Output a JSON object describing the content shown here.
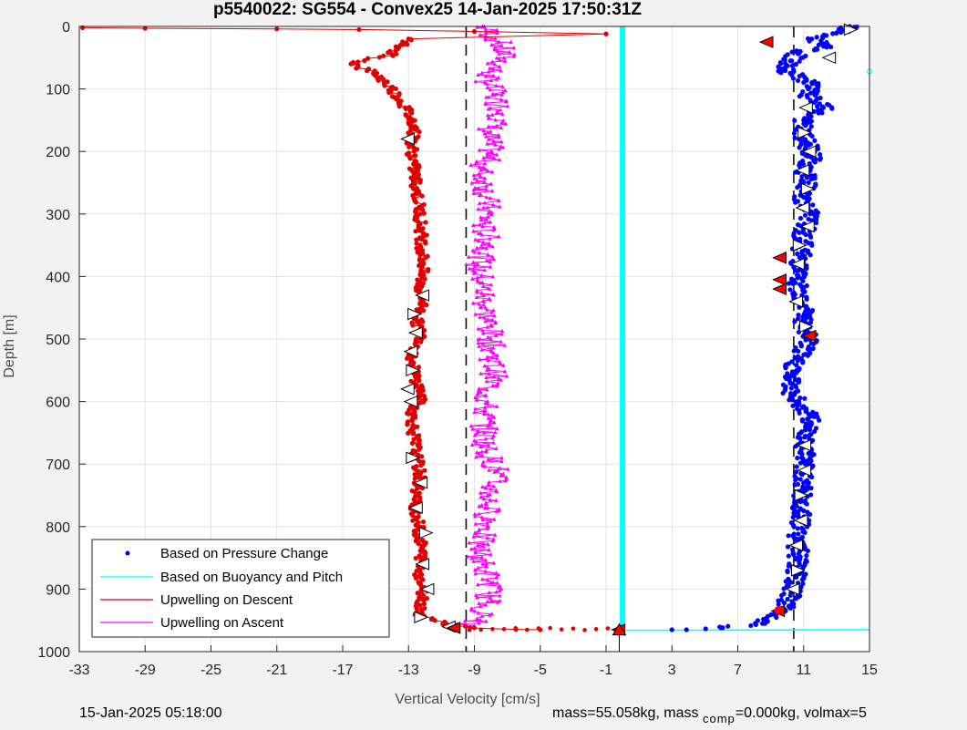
{
  "chart_data": {
    "type": "scatter",
    "title": "p5540022: SG554 - Convex25 14-Jan-2025 17:50:31Z",
    "xlabel": "Vertical Velocity [cm/s]",
    "ylabel": "Depth [m]",
    "xlim": [
      -33,
      15
    ],
    "ylim": [
      0,
      1000
    ],
    "y_reversed": true,
    "grid": true,
    "legend_position": "bottom-left",
    "x_ticks": [
      "-33",
      "-29",
      "-25",
      "-21",
      "-17",
      "-13",
      "-9",
      "-5",
      "-1",
      "3",
      "7",
      "11",
      "15"
    ],
    "y_ticks": [
      "0",
      "100",
      "200",
      "300",
      "400",
      "500",
      "600",
      "700",
      "800",
      "900",
      "1000"
    ],
    "reference_lines_x": [
      -9.5,
      10.4
    ],
    "series": [
      {
        "name": "Based on Pressure Change",
        "color": "#0000ff",
        "marker": "dot",
        "profile": [
          [
            0,
            13.8
          ],
          [
            10,
            13
          ],
          [
            20,
            11.5
          ],
          [
            30,
            12.5
          ],
          [
            40,
            10.8
          ],
          [
            55,
            10.2
          ],
          [
            70,
            9.8
          ],
          [
            90,
            11.5
          ],
          [
            110,
            11.2
          ],
          [
            130,
            12.2
          ],
          [
            150,
            11
          ],
          [
            170,
            10.8
          ],
          [
            190,
            11.3
          ],
          [
            210,
            11.5
          ],
          [
            230,
            11
          ],
          [
            250,
            11.3
          ],
          [
            270,
            10.8
          ],
          [
            300,
            11.4
          ],
          [
            330,
            11
          ],
          [
            360,
            10.9
          ],
          [
            390,
            10.7
          ],
          [
            410,
            10.5
          ],
          [
            430,
            10.9
          ],
          [
            460,
            11.2
          ],
          [
            480,
            10.8
          ],
          [
            500,
            11.4
          ],
          [
            530,
            10.6
          ],
          [
            560,
            10.2
          ],
          [
            590,
            10.3
          ],
          [
            620,
            11.3
          ],
          [
            640,
            11.4
          ],
          [
            670,
            11.1
          ],
          [
            700,
            11.1
          ],
          [
            730,
            11
          ],
          [
            760,
            10.8
          ],
          [
            790,
            10.8
          ],
          [
            820,
            10.6
          ],
          [
            850,
            10.7
          ],
          [
            880,
            10.5
          ],
          [
            910,
            10.2
          ],
          [
            935,
            9.8
          ],
          [
            955,
            8.5
          ],
          [
            962,
            6
          ],
          [
            965,
            3
          ]
        ]
      },
      {
        "name": "Based on Buoyancy and Pitch",
        "color": "#00ffff",
        "marker": "line",
        "profile": [
          [
            0,
            0
          ],
          [
            965,
            0
          ]
        ]
      },
      {
        "name": "Upwelling on Descent",
        "color": "#e00000",
        "marker": "dot-line",
        "profile": [
          [
            2,
            -32.8
          ],
          [
            3,
            -29
          ],
          [
            4,
            -21
          ],
          [
            5,
            -16
          ],
          [
            8,
            -9
          ],
          [
            12,
            -1
          ],
          [
            20,
            -13
          ],
          [
            30,
            -13.5
          ],
          [
            45,
            -14
          ],
          [
            60,
            -16.5
          ],
          [
            75,
            -15
          ],
          [
            100,
            -14
          ],
          [
            130,
            -13.2
          ],
          [
            160,
            -12.6
          ],
          [
            190,
            -12.8
          ],
          [
            220,
            -12.7
          ],
          [
            260,
            -12.5
          ],
          [
            300,
            -12.3
          ],
          [
            340,
            -12.2
          ],
          [
            380,
            -12.1
          ],
          [
            420,
            -12.3
          ],
          [
            440,
            -12.1
          ],
          [
            470,
            -12.5
          ],
          [
            500,
            -12.2
          ],
          [
            530,
            -12.8
          ],
          [
            560,
            -12.6
          ],
          [
            590,
            -12.2
          ],
          [
            620,
            -12.8
          ],
          [
            650,
            -12.7
          ],
          [
            690,
            -12.5
          ],
          [
            720,
            -12.3
          ],
          [
            760,
            -12.6
          ],
          [
            800,
            -12.4
          ],
          [
            840,
            -12.2
          ],
          [
            880,
            -12.3
          ],
          [
            910,
            -12.1
          ],
          [
            940,
            -12.3
          ],
          [
            958,
            -10.5
          ],
          [
            962,
            -9
          ],
          [
            965,
            -5
          ]
        ]
      },
      {
        "name": "Upwelling on Ascent",
        "color": "#ff00ff",
        "marker": "triangle-line",
        "profile": [
          [
            0,
            -8.5
          ],
          [
            25,
            -7.5
          ],
          [
            50,
            -7.2
          ],
          [
            80,
            -8.3
          ],
          [
            110,
            -7.8
          ],
          [
            140,
            -7.3
          ],
          [
            170,
            -8.2
          ],
          [
            200,
            -8
          ],
          [
            230,
            -8.6
          ],
          [
            260,
            -8.3
          ],
          [
            290,
            -8.2
          ],
          [
            320,
            -8.5
          ],
          [
            350,
            -8.1
          ],
          [
            380,
            -8.8
          ],
          [
            410,
            -8.5
          ],
          [
            440,
            -8.4
          ],
          [
            470,
            -8.2
          ],
          [
            500,
            -8.0
          ],
          [
            530,
            -7.9
          ],
          [
            560,
            -7.8
          ],
          [
            590,
            -8.3
          ],
          [
            620,
            -8.4
          ],
          [
            650,
            -8.4
          ],
          [
            680,
            -8.3
          ],
          [
            710,
            -7.6
          ],
          [
            740,
            -8.0
          ],
          [
            770,
            -8.2
          ],
          [
            800,
            -8.2
          ],
          [
            830,
            -8.8
          ],
          [
            860,
            -8.5
          ],
          [
            890,
            -8.0
          ],
          [
            920,
            -8.2
          ],
          [
            950,
            -8.8
          ],
          [
            960,
            -9.5
          ]
        ]
      }
    ],
    "descent_markers_red": [
      [
        25,
        8.8
      ],
      [
        370,
        9.6
      ],
      [
        405,
        9.6
      ],
      [
        420,
        9.6
      ],
      [
        495,
        11.4
      ],
      [
        935,
        9.5
      ],
      [
        962,
        -10.2
      ],
      [
        965,
        -0.2
      ]
    ],
    "dive_wedges": [
      [
        5,
        13.8
      ],
      [
        180,
        -13
      ],
      [
        430,
        -12.1
      ],
      [
        460,
        -12.7
      ],
      [
        490,
        -12.5
      ],
      [
        520,
        -12.8
      ],
      [
        550,
        -12.8
      ],
      [
        580,
        -13
      ],
      [
        600,
        -12.8
      ],
      [
        690,
        -12.8
      ],
      [
        730,
        -12.2
      ],
      [
        770,
        -12.5
      ],
      [
        810,
        -12
      ],
      [
        860,
        -12.1
      ],
      [
        900,
        -11.8
      ],
      [
        945,
        -12.3
      ],
      [
        960,
        -10.5
      ],
      [
        130,
        11.2
      ],
      [
        170,
        11
      ],
      [
        200,
        11.4
      ],
      [
        230,
        11
      ],
      [
        260,
        11.2
      ],
      [
        290,
        11
      ],
      [
        320,
        11.3
      ],
      [
        350,
        10.7
      ],
      [
        380,
        10.7
      ],
      [
        440,
        10.6
      ],
      [
        480,
        11.1
      ],
      [
        670,
        11.1
      ],
      [
        710,
        11.1
      ],
      [
        750,
        10.8
      ],
      [
        790,
        10.9
      ],
      [
        830,
        10.6
      ],
      [
        870,
        10.6
      ],
      [
        900,
        10.4
      ],
      [
        50,
        12.6
      ]
    ]
  },
  "footer": {
    "timestamp": "15-Jan-2025 05:18:00",
    "mass_text": "mass=55.058kg, mass",
    "comp_sub": "comp",
    "comp_text": "=0.000kg, volmax=5"
  }
}
